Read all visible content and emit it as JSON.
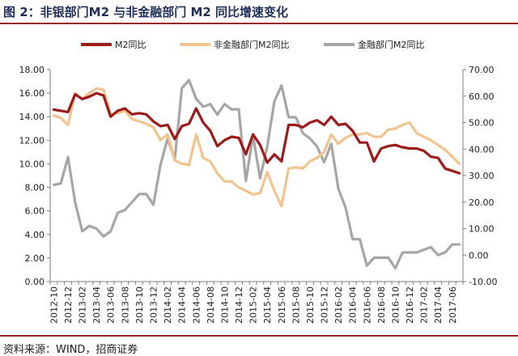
{
  "figure": {
    "title": "图 2：非银部门M2 与非金融部门 M2 同比增速变化",
    "source": "资料来源：WIND，招商证券"
  },
  "colors": {
    "m2": "#9b1b1b",
    "nonfin": "#f2c38e",
    "fin": "#a6a6a6",
    "title": "#1f2f5a",
    "rule": "#9a1f1f"
  },
  "chart_data": {
    "type": "line",
    "legend_position": "top",
    "grid": false,
    "x_label": "",
    "y_left_label": "",
    "y_right_label": "",
    "y_left_range": [
      0,
      18
    ],
    "y_left_ticks": [
      "0.00",
      "2.00",
      "4.00",
      "6.00",
      "8.00",
      "10.00",
      "12.00",
      "14.00",
      "16.00",
      "18.00"
    ],
    "y_right_range": [
      -10,
      70
    ],
    "y_right_ticks": [
      "-10.00",
      "0.00",
      "10.00",
      "20.00",
      "30.00",
      "40.00",
      "50.00",
      "60.00",
      "70.00"
    ],
    "x_tick_labels": [
      "2012-10",
      "2012-12",
      "2013-02",
      "2013-04",
      "2013-06",
      "2013-08",
      "2013-10",
      "2013-12",
      "2014-02",
      "2014-04",
      "2014-06",
      "2014-08",
      "2014-10",
      "2014-12",
      "2015-02",
      "2015-04",
      "2015-06",
      "2015-08",
      "2015-10",
      "2015-12",
      "2016-02",
      "2016-04",
      "2016-06",
      "2016-08",
      "2016-10",
      "2016-12",
      "2017-02",
      "2017-04",
      "2017-06"
    ],
    "x": [
      "2012-10",
      "2012-11",
      "2012-12",
      "2013-01",
      "2013-02",
      "2013-03",
      "2013-04",
      "2013-05",
      "2013-06",
      "2013-07",
      "2013-08",
      "2013-09",
      "2013-10",
      "2013-11",
      "2013-12",
      "2014-01",
      "2014-02",
      "2014-03",
      "2014-04",
      "2014-05",
      "2014-06",
      "2014-07",
      "2014-08",
      "2014-09",
      "2014-10",
      "2014-11",
      "2014-12",
      "2015-01",
      "2015-02",
      "2015-03",
      "2015-04",
      "2015-05",
      "2015-06",
      "2015-07",
      "2015-08",
      "2015-09",
      "2015-10",
      "2015-11",
      "2015-12",
      "2016-01",
      "2016-02",
      "2016-03",
      "2016-04",
      "2016-05",
      "2016-06",
      "2016-07",
      "2016-08",
      "2016-09",
      "2016-10",
      "2016-11",
      "2016-12",
      "2017-01",
      "2017-02",
      "2017-03",
      "2017-04",
      "2017-05",
      "2017-06",
      "2017-07"
    ],
    "series": [
      {
        "name": "M2同比",
        "axis": "left",
        "values": [
          14.6,
          14.5,
          14.4,
          15.9,
          15.5,
          15.7,
          16.0,
          15.8,
          14.0,
          14.5,
          14.7,
          14.2,
          14.3,
          14.2,
          13.6,
          13.2,
          13.3,
          12.1,
          13.2,
          13.4,
          14.7,
          13.5,
          12.8,
          11.5,
          12.0,
          12.3,
          12.2,
          10.8,
          12.5,
          11.6,
          10.1,
          10.8,
          10.2,
          13.3,
          13.3,
          13.1,
          13.5,
          13.7,
          13.3,
          14.0,
          13.3,
          13.4,
          12.8,
          11.8,
          11.8,
          10.2,
          11.3,
          11.5,
          11.6,
          11.4,
          11.3,
          11.3,
          11.1,
          10.6,
          10.5,
          9.6,
          9.4,
          9.2
        ]
      },
      {
        "name": "非金融部门M2同比",
        "axis": "left",
        "values": [
          14.1,
          13.9,
          13.3,
          16.0,
          15.5,
          16.0,
          16.4,
          16.3,
          14.2,
          14.3,
          14.5,
          13.8,
          13.6,
          13.4,
          13.1,
          12.0,
          12.5,
          10.3,
          10.0,
          9.9,
          12.5,
          10.5,
          10.2,
          9.2,
          8.5,
          8.5,
          8.0,
          7.7,
          7.4,
          7.5,
          9.3,
          7.7,
          6.4,
          9.6,
          9.7,
          9.6,
          10.2,
          10.5,
          11.0,
          12.5,
          11.7,
          12.2,
          12.5,
          12.5,
          12.6,
          12.3,
          12.3,
          12.9,
          13.0,
          13.3,
          13.5,
          12.6,
          12.3,
          12.0,
          11.6,
          11.2,
          10.6,
          10.0
        ]
      },
      {
        "name": "金融部门M2同比",
        "axis": "right",
        "values": [
          26.5,
          27,
          37,
          20,
          9,
          11,
          10,
          7,
          9,
          16,
          17,
          20,
          23,
          23,
          19,
          34,
          44,
          36,
          63,
          66,
          59,
          56,
          57,
          53,
          57,
          55,
          55,
          28,
          45,
          29,
          41,
          58,
          64,
          52,
          52,
          46,
          44,
          41,
          35,
          42,
          25,
          18,
          6,
          6,
          -4,
          -1,
          -1,
          -1,
          -5,
          1,
          1,
          1,
          2,
          3,
          0,
          1,
          4,
          4
        ]
      }
    ]
  }
}
